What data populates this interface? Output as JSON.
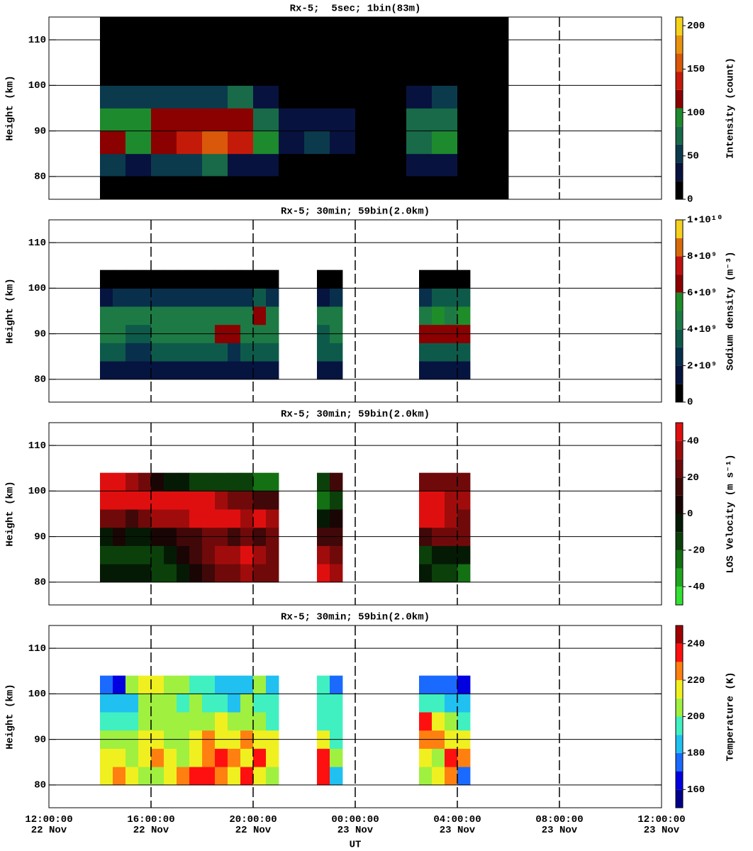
{
  "chart_data": [
    {
      "type": "heatmap",
      "title": "Rx-5;  5sec; 1bin(83m)",
      "ylabel": "Height (km)",
      "xlim": [
        12,
        36
      ],
      "xticks": [
        {
          "value": 12,
          "label": "12:00:00\n22 Nov"
        },
        {
          "value": 16,
          "label": "16:00:00\n22 Nov"
        },
        {
          "value": 20,
          "label": "20:00:00\n22 Nov"
        },
        {
          "value": 24,
          "label": "00:00:00\n23 Nov"
        },
        {
          "value": 28,
          "label": "04:00:00\n23 Nov"
        },
        {
          "value": 32,
          "label": "08:00:00\n23 Nov"
        },
        {
          "value": 36,
          "label": "12:00:00\n23 Nov"
        }
      ],
      "ylim": [
        75,
        115
      ],
      "yticks": [
        80,
        90,
        100,
        110
      ],
      "grid": true,
      "vgrid_on_top": false,
      "x": [
        14.5,
        15.5,
        16.5,
        17.5,
        18.5,
        19.5,
        20.5,
        21.5,
        22.5,
        23.5,
        24.5,
        25.5,
        26.5,
        27.5,
        28.5,
        29.5
      ],
      "y": [
        77.5,
        82.5,
        87.5,
        92.5,
        97.5,
        102.5,
        107.5,
        112.5
      ],
      "values": [
        [
          5,
          5,
          5,
          5,
          5,
          5,
          5,
          5,
          5,
          5,
          5,
          5,
          5,
          5,
          5,
          5
        ],
        [
          50,
          40,
          50,
          60,
          70,
          40,
          30,
          20,
          20,
          15,
          10,
          10,
          30,
          40,
          10,
          5
        ],
        [
          120,
          100,
          110,
          130,
          150,
          130,
          90,
          40,
          50,
          30,
          20,
          20,
          70,
          90,
          15,
          10
        ],
        [
          100,
          90,
          110,
          110,
          120,
          120,
          80,
          40,
          40,
          30,
          20,
          20,
          70,
          80,
          15,
          10
        ],
        [
          60,
          50,
          50,
          50,
          60,
          80,
          40,
          20,
          20,
          15,
          10,
          10,
          40,
          50,
          10,
          5
        ],
        [
          10,
          10,
          10,
          10,
          10,
          10,
          10,
          5,
          5,
          5,
          5,
          5,
          5,
          5,
          5,
          5
        ],
        [
          5,
          5,
          5,
          5,
          5,
          5,
          5,
          5,
          5,
          5,
          5,
          5,
          5,
          5,
          5,
          5
        ],
        [
          5,
          5,
          5,
          5,
          5,
          5,
          5,
          5,
          5,
          5,
          5,
          5,
          5,
          5,
          5,
          5
        ]
      ],
      "colorbar": {
        "label": "Intensity (count)",
        "levels": [
          0,
          21,
          42,
          63,
          84,
          105,
          126,
          147,
          168,
          189,
          210
        ],
        "colors": [
          "#000000",
          "#08123e",
          "#0b3a4c",
          "#186a48",
          "#1e8a2e",
          "#8b0000",
          "#c41a0a",
          "#d9580a",
          "#e8930f",
          "#f5d21c"
        ],
        "ticks": [
          0,
          50,
          100,
          150,
          200
        ]
      }
    },
    {
      "type": "heatmap",
      "title": "Rx-5; 30min; 59bin(2.0km)",
      "ylabel": "Height (km)",
      "xlim": [
        12,
        36
      ],
      "xticks": [
        12,
        16,
        20,
        24,
        28,
        32,
        36
      ],
      "ylim": [
        75,
        115
      ],
      "yticks": [
        80,
        90,
        100,
        110
      ],
      "grid": true,
      "vgrid_on_top": true,
      "x": [
        14.25,
        14.75,
        15.25,
        15.75,
        16.25,
        16.75,
        17.25,
        17.75,
        18.25,
        18.75,
        19.25,
        19.75,
        20.25,
        20.75,
        22.75,
        23.25,
        26.75,
        27.25,
        27.75,
        28.25
      ],
      "y": [
        82,
        86,
        90,
        94,
        98,
        102
      ],
      "values": [
        [
          1000000000.0,
          1000000000.0,
          1000000000.0,
          1000000000.0,
          1000000000.0,
          1000000000.0,
          1000000000.0,
          1000000000.0,
          1000000000.0,
          1000000000.0,
          1000000000.0,
          1000000000.0,
          1000000000.0,
          1000000000.0,
          1000000000.0,
          1000000000.0,
          1000000000.0,
          1000000000.0,
          1000000000.0,
          1000000000.0
        ],
        [
          3000000000.0,
          3000000000.0,
          2000000000.0,
          2000000000.0,
          3000000000.0,
          3000000000.0,
          3000000000.0,
          3000000000.0,
          3000000000.0,
          3000000000.0,
          2000000000.0,
          3000000000.0,
          3000000000.0,
          3000000000.0,
          3000000000.0,
          3000000000.0,
          3000000000.0,
          3000000000.0,
          3000000000.0,
          3000000000.0
        ],
        [
          4000000000.0,
          4000000000.0,
          3000000000.0,
          3000000000.0,
          4000000000.0,
          4000000000.0,
          4000000000.0,
          4000000000.0,
          4000000000.0,
          6000000000.0,
          6000000000.0,
          4000000000.0,
          4000000000.0,
          4000000000.0,
          3000000000.0,
          4000000000.0,
          6000000000.0,
          6000000000.0,
          6000000000.0,
          6000000000.0
        ],
        [
          4000000000.0,
          4000000000.0,
          4000000000.0,
          4000000000.0,
          4000000000.0,
          4000000000.0,
          4000000000.0,
          4000000000.0,
          4000000000.0,
          4000000000.0,
          4000000000.0,
          4000000000.0,
          6000000000.0,
          4000000000.0,
          4000000000.0,
          4000000000.0,
          4000000000.0,
          5000000000.0,
          4000000000.0,
          5000000000.0
        ],
        [
          1000000000.0,
          2000000000.0,
          2000000000.0,
          2000000000.0,
          2000000000.0,
          2000000000.0,
          2000000000.0,
          2000000000.0,
          2000000000.0,
          2000000000.0,
          2000000000.0,
          2000000000.0,
          3000000000.0,
          2000000000.0,
          1000000000.0,
          2000000000.0,
          2000000000.0,
          3000000000.0,
          3000000000.0,
          3000000000.0
        ],
        [
          300000000.0,
          300000000.0,
          300000000.0,
          300000000.0,
          300000000.0,
          300000000.0,
          300000000.0,
          300000000.0,
          300000000.0,
          300000000.0,
          300000000.0,
          300000000.0,
          300000000.0,
          300000000.0,
          300000000.0,
          300000000.0,
          300000000.0,
          300000000.0,
          300000000.0,
          300000000.0
        ]
      ],
      "colorbar": {
        "label": "Sodium density (m⁻³)",
        "levels": [
          0,
          1000000000.0,
          2000000000.0,
          3000000000.0,
          4000000000.0,
          5000000000.0,
          6000000000.0,
          7000000000.0,
          8000000000.0,
          9000000000.0,
          10000000000.0
        ],
        "colors": [
          "#000000",
          "#061440",
          "#08304c",
          "#0e5a4a",
          "#1d7a44",
          "#1f8c2a",
          "#8b0000",
          "#c01010",
          "#d86a0c",
          "#f5d020"
        ],
        "ticks": [
          0,
          {
            "value": 2000000000.0,
            "label": "2•10⁹"
          },
          {
            "value": 4000000000.0,
            "label": "4•10⁹"
          },
          {
            "value": 6000000000.0,
            "label": "6•10⁹"
          },
          {
            "value": 8000000000.0,
            "label": "8•10⁹"
          },
          {
            "value": 10000000000.0,
            "label": "1•10¹⁰"
          }
        ]
      }
    },
    {
      "type": "heatmap",
      "title": "Rx-5; 30min; 59bin(2.0km)",
      "ylabel": "Height (km)",
      "xlim": [
        12,
        36
      ],
      "xticks": [
        12,
        16,
        20,
        24,
        28,
        32,
        36
      ],
      "ylim": [
        75,
        115
      ],
      "yticks": [
        80,
        90,
        100,
        110
      ],
      "grid": true,
      "vgrid_on_top": true,
      "x": [
        14.25,
        14.75,
        15.25,
        15.75,
        16.25,
        16.75,
        17.25,
        17.75,
        18.25,
        18.75,
        19.25,
        19.75,
        20.25,
        20.75,
        22.75,
        23.25,
        26.75,
        27.25,
        27.75,
        28.25
      ],
      "y": [
        82,
        86,
        90,
        94,
        98,
        102
      ],
      "values": [
        [
          -10,
          -10,
          -10,
          -10,
          -15,
          -15,
          -10,
          0,
          10,
          20,
          20,
          30,
          20,
          20,
          40,
          30,
          -10,
          -15,
          -20,
          -25
        ],
        [
          -15,
          -15,
          -20,
          -20,
          -15,
          -10,
          0,
          10,
          20,
          30,
          30,
          40,
          30,
          20,
          30,
          20,
          -15,
          -10,
          -10,
          -5
        ],
        [
          -5,
          0,
          -5,
          -5,
          0,
          5,
          10,
          10,
          20,
          20,
          10,
          20,
          10,
          20,
          10,
          10,
          10,
          20,
          20,
          20
        ],
        [
          20,
          20,
          10,
          20,
          30,
          30,
          30,
          40,
          40,
          40,
          40,
          30,
          40,
          30,
          -10,
          0,
          40,
          40,
          30,
          20
        ],
        [
          45,
          45,
          40,
          45,
          45,
          45,
          45,
          40,
          40,
          30,
          20,
          20,
          10,
          10,
          -30,
          -20,
          45,
          40,
          30,
          30
        ],
        [
          45,
          45,
          30,
          20,
          5,
          -5,
          -10,
          -15,
          -15,
          -15,
          -15,
          -15,
          -25,
          -25,
          -20,
          10,
          20,
          20,
          20,
          20
        ]
      ],
      "colorbar": {
        "label": "LOS Velocity (m s⁻¹)",
        "levels": [
          -50,
          -40,
          -30,
          -20,
          -10,
          0,
          10,
          20,
          30,
          40,
          50
        ],
        "colors": [
          "#33e033",
          "#1fa61f",
          "#137013",
          "#0b400b",
          "#051a05",
          "#1a0505",
          "#400808",
          "#700a0a",
          "#a00c0c",
          "#e00f0f"
        ],
        "ticks": [
          -40,
          -20,
          0,
          20,
          40
        ]
      }
    },
    {
      "type": "heatmap",
      "title": "Rx-5; 30min; 59bin(2.0km)",
      "ylabel": "Height (km)",
      "xlabel": "UT",
      "xlim": [
        12,
        36
      ],
      "xticks": [
        {
          "value": 12,
          "label": "12:00:00\n22 Nov"
        },
        {
          "value": 16,
          "label": "16:00:00\n22 Nov"
        },
        {
          "value": 20,
          "label": "20:00:00\n22 Nov"
        },
        {
          "value": 24,
          "label": "00:00:00\n23 Nov"
        },
        {
          "value": 28,
          "label": "04:00:00\n23 Nov"
        },
        {
          "value": 32,
          "label": "08:00:00\n23 Nov"
        },
        {
          "value": 36,
          "label": "12:00:00\n23 Nov"
        }
      ],
      "ylim": [
        75,
        115
      ],
      "yticks": [
        80,
        90,
        100,
        110
      ],
      "grid": true,
      "vgrid_on_top": true,
      "x": [
        14.25,
        14.75,
        15.25,
        15.75,
        16.25,
        16.75,
        17.25,
        17.75,
        18.25,
        18.75,
        19.25,
        19.75,
        20.25,
        20.75,
        22.75,
        23.25,
        26.75,
        27.25,
        27.75,
        28.25
      ],
      "y": [
        82,
        86,
        90,
        94,
        98,
        102
      ],
      "values": [
        [
          215,
          225,
          210,
          205,
          205,
          215,
          225,
          230,
          235,
          220,
          215,
          230,
          215,
          205,
          230,
          180,
          200,
          210,
          225,
          175
        ],
        [
          215,
          210,
          205,
          215,
          220,
          215,
          205,
          215,
          225,
          235,
          220,
          215,
          230,
          215,
          235,
          200,
          210,
          205,
          230,
          220
        ],
        [
          205,
          200,
          200,
          215,
          210,
          205,
          200,
          210,
          220,
          215,
          210,
          220,
          210,
          215,
          210,
          195,
          220,
          225,
          215,
          210
        ],
        [
          195,
          190,
          195,
          200,
          205,
          200,
          200,
          200,
          205,
          210,
          205,
          200,
          200,
          195,
          195,
          195,
          230,
          215,
          200,
          195
        ],
        [
          180,
          185,
          185,
          200,
          205,
          200,
          195,
          200,
          195,
          190,
          185,
          200,
          190,
          195,
          190,
          190,
          195,
          190,
          185,
          180
        ],
        [
          175,
          165,
          200,
          215,
          210,
          200,
          205,
          195,
          190,
          185,
          180,
          185,
          200,
          185,
          190,
          175,
          170,
          170,
          175,
          165
        ]
      ],
      "colorbar": {
        "label": "Temperature (K)",
        "levels": [
          150,
          160,
          170,
          180,
          190,
          200,
          210,
          220,
          230,
          240,
          250
        ],
        "colors": [
          "#00008b",
          "#0000e0",
          "#1a6aff",
          "#20c0f0",
          "#40f0c0",
          "#a0f040",
          "#f0f020",
          "#ff8010",
          "#ff1010",
          "#a00000"
        ],
        "ticks": [
          160,
          180,
          200,
          220,
          240
        ]
      }
    }
  ]
}
